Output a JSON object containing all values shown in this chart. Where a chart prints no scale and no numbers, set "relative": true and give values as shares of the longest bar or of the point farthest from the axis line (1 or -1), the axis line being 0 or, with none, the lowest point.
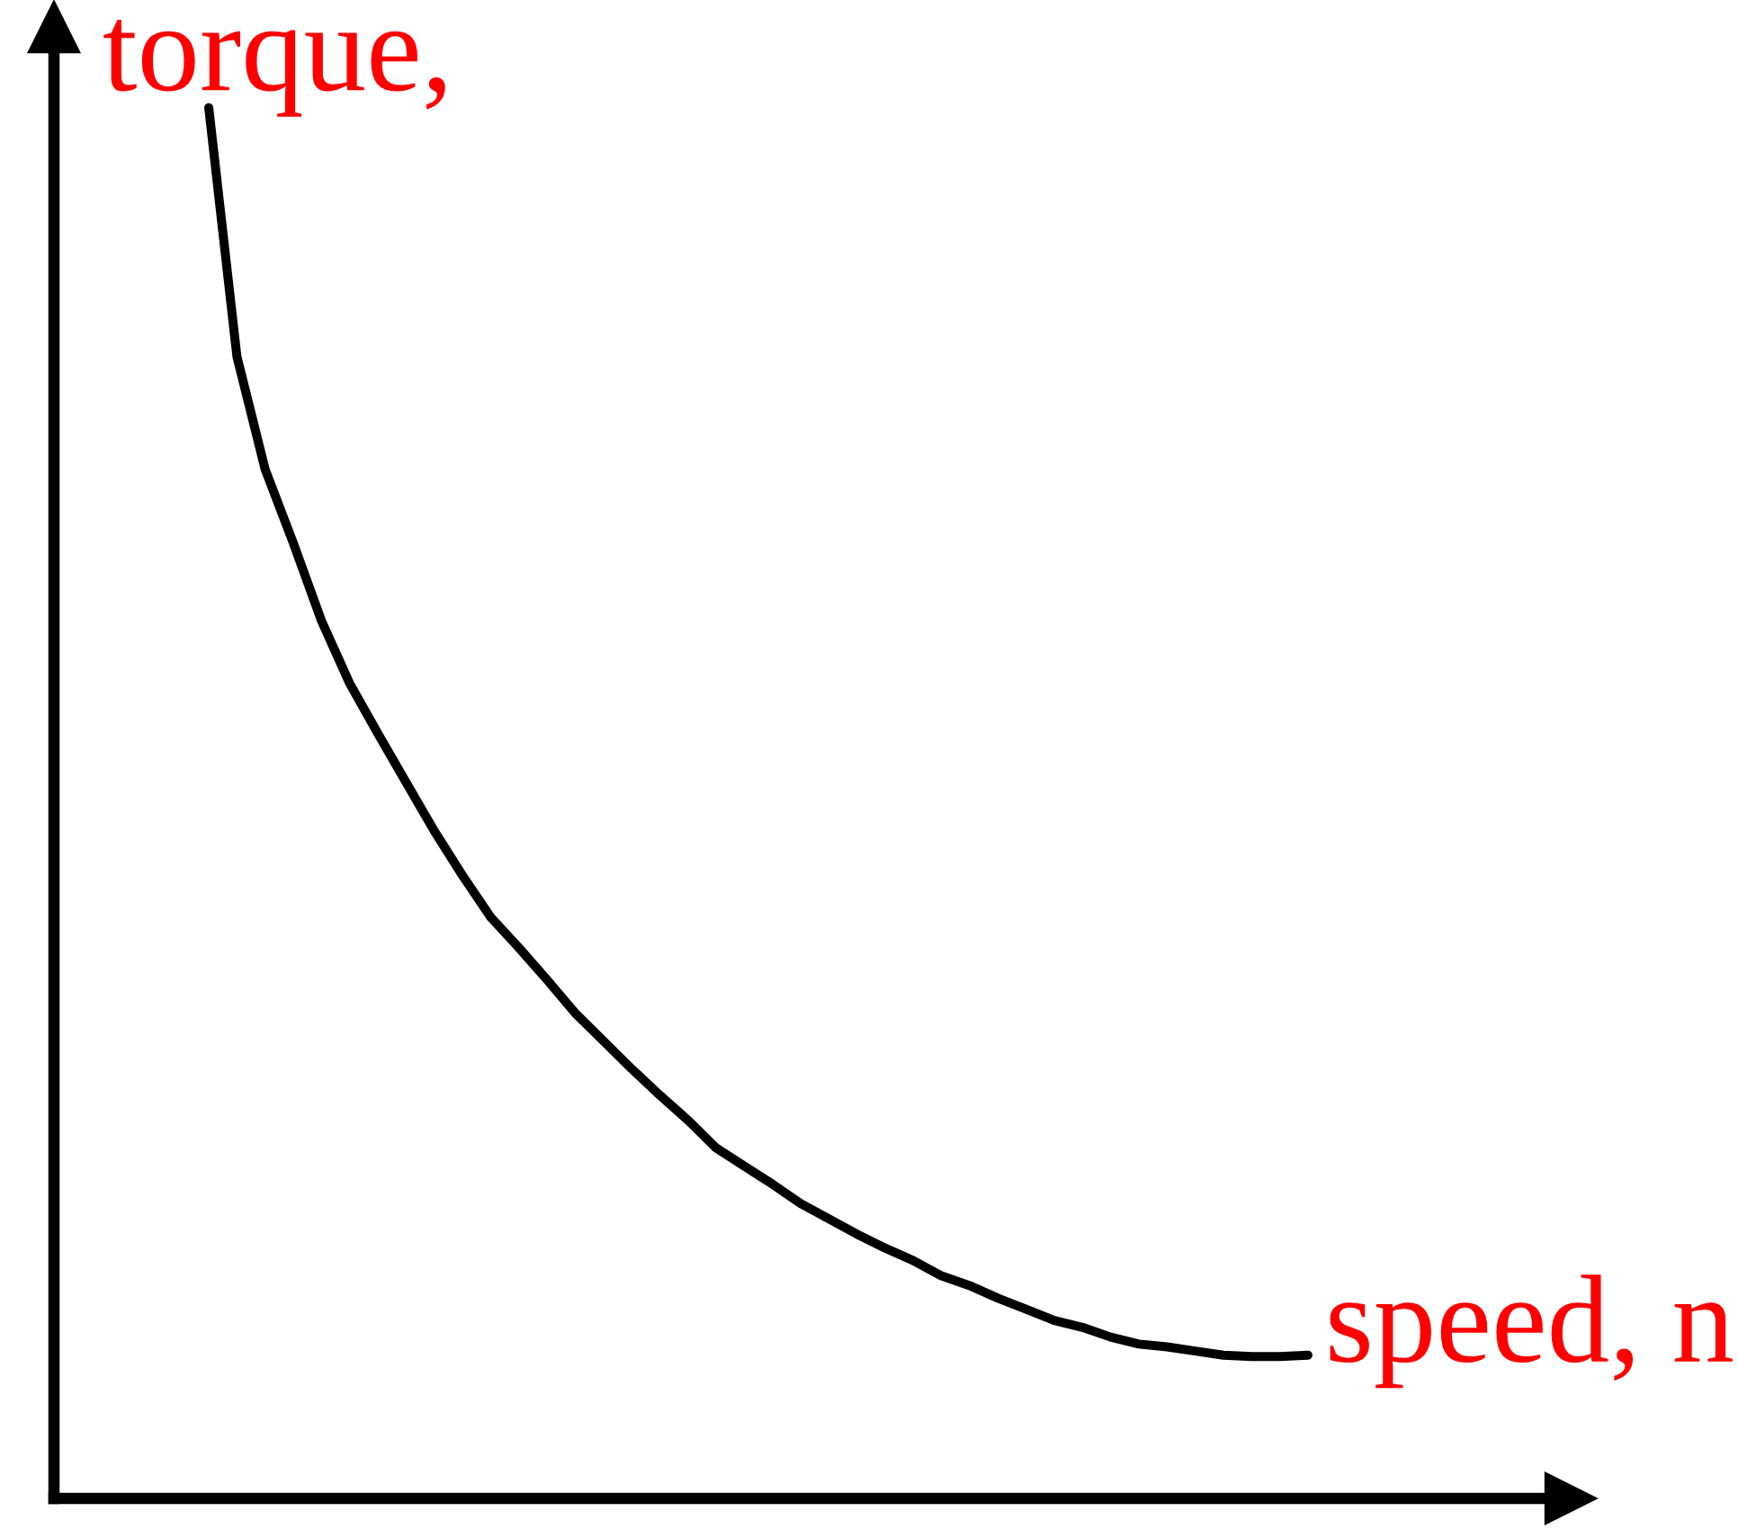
{
  "chart_data": {
    "type": "line",
    "relative": true,
    "xlabel": "speed, n",
    "ylabel": "torque,",
    "categories": [
      null,
      null,
      null,
      null,
      null,
      null,
      null,
      null,
      null,
      null,
      null,
      null,
      null,
      null,
      null,
      null,
      null,
      null,
      null,
      null,
      null,
      null,
      null,
      null,
      null,
      null,
      null,
      null,
      null,
      null,
      null,
      null,
      null,
      null,
      null,
      null,
      null,
      null,
      null,
      null
    ],
    "series": [
      {
        "color": "#000000",
        "values": [
          1,
          0.821,
          0.74,
          0.687,
          0.631,
          0.586,
          0.55,
          0.515,
          0.48,
          0.448,
          0.418,
          0.396,
          0.373,
          0.349,
          0.329,
          0.309,
          0.29,
          0.272,
          0.252,
          0.239,
          0.226,
          0.212,
          0.201,
          0.19,
          0.18,
          0.171,
          0.16,
          0.153,
          0.144,
          0.136,
          0.128,
          0.123,
          0.116,
          0.111,
          0.109,
          0.106,
          0.103,
          0.102,
          0.102,
          0.103
        ]
      }
    ]
  }
}
